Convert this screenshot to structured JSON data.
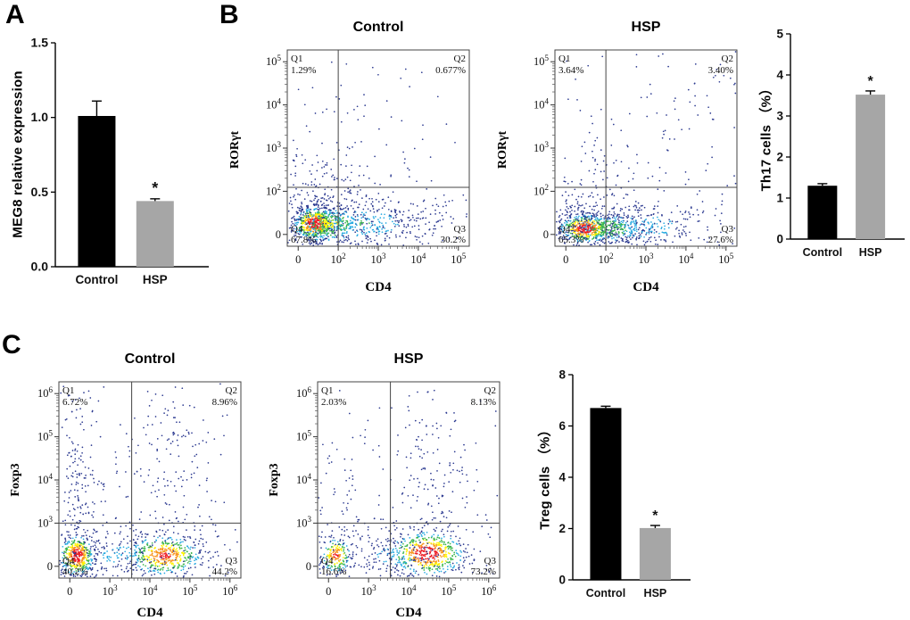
{
  "figure": {
    "background": "#ffffff",
    "panel_labels": {
      "a": "A",
      "b": "B",
      "c": "C"
    }
  },
  "colors": {
    "bar_control": "#000000",
    "bar_hsp": "#a6a6a6",
    "axis": "#000000",
    "density_ramp": [
      "#2b3990",
      "#27aae1",
      "#39b54a",
      "#fff200",
      "#f7941d",
      "#ed1c24"
    ]
  },
  "chart_data": [
    {
      "id": "meg8_bar",
      "type": "bar",
      "categories": [
        "Control",
        "HSP"
      ],
      "values": [
        1.01,
        0.44
      ],
      "errors": [
        0.1,
        0.015
      ],
      "significance": [
        "",
        "*"
      ],
      "bar_colors": [
        "#000000",
        "#a6a6a6"
      ],
      "ylabel": "MEG8 relative expression",
      "xlabel": "",
      "ylim": [
        0,
        1.5
      ],
      "yticks": [
        0,
        0.5,
        1,
        1.5
      ],
      "ytick_labels": [
        "0.0",
        "0.5",
        "1.0",
        "1.5"
      ],
      "legend": "none",
      "grid": false
    },
    {
      "id": "flow_b_control",
      "type": "scatter",
      "variant": "flow-cytometry-density",
      "title": "Control",
      "xlabel": "CD4",
      "ylabel": "RORγt",
      "xticks": [
        "0",
        "10^2",
        "10^3",
        "10^4",
        "10^5"
      ],
      "yticks": [
        "0",
        "10^2",
        "10^3",
        "10^4",
        "10^5"
      ],
      "gate": {
        "x": 0.28,
        "y": 0.3
      },
      "quadrants": [
        {
          "name": "Q1",
          "value": "1.29%",
          "corner": "tl"
        },
        {
          "name": "Q2",
          "value": "0.677%",
          "corner": "tr"
        },
        {
          "name": "Q3",
          "value": "30.2%",
          "corner": "br"
        },
        {
          "name": "Q4",
          "value": "67.8%",
          "corner": "bl"
        }
      ],
      "clusters": [
        {
          "cx": 0.15,
          "cy": 0.115,
          "sx": 0.055,
          "sy": 0.042,
          "n": 650,
          "heat": 1.0
        },
        {
          "cx": 0.24,
          "cy": 0.11,
          "sx": 0.09,
          "sy": 0.05,
          "n": 380,
          "heat": 0.5
        },
        {
          "cx": 0.42,
          "cy": 0.115,
          "sx": 0.16,
          "sy": 0.055,
          "n": 320,
          "heat": 0.28
        },
        {
          "cx": 0.68,
          "cy": 0.12,
          "sx": 0.12,
          "sy": 0.06,
          "n": 80,
          "heat": 0.12
        },
        {
          "cx": 0.17,
          "cy": 0.32,
          "sx": 0.1,
          "sy": 0.13,
          "n": 110,
          "heat": 0.12
        },
        {
          "cx": 0.45,
          "cy": 0.55,
          "sx": 0.28,
          "sy": 0.25,
          "n": 70,
          "heat": 0
        }
      ]
    },
    {
      "id": "flow_b_hsp",
      "type": "scatter",
      "variant": "flow-cytometry-density",
      "title": "HSP",
      "xlabel": "CD4",
      "ylabel": "RORγt",
      "xticks": [
        "0",
        "10^2",
        "10^3",
        "10^4",
        "10^5"
      ],
      "yticks": [
        "0",
        "10^2",
        "10^3",
        "10^4",
        "10^5"
      ],
      "gate": {
        "x": 0.28,
        "y": 0.3
      },
      "quadrants": [
        {
          "name": "Q1",
          "value": "3.64%",
          "corner": "tl"
        },
        {
          "name": "Q2",
          "value": "3.40%",
          "corner": "tr"
        },
        {
          "name": "Q3",
          "value": "27.6%",
          "corner": "br"
        },
        {
          "name": "Q4",
          "value": "65.3%",
          "corner": "bl"
        }
      ],
      "clusters": [
        {
          "cx": 0.17,
          "cy": 0.09,
          "sx": 0.07,
          "sy": 0.035,
          "n": 620,
          "heat": 1.0
        },
        {
          "cx": 0.3,
          "cy": 0.09,
          "sx": 0.1,
          "sy": 0.04,
          "n": 350,
          "heat": 0.45
        },
        {
          "cx": 0.5,
          "cy": 0.1,
          "sx": 0.15,
          "sy": 0.05,
          "n": 260,
          "heat": 0.25
        },
        {
          "cx": 0.2,
          "cy": 0.28,
          "sx": 0.12,
          "sy": 0.13,
          "n": 110,
          "heat": 0.1
        },
        {
          "cx": 0.55,
          "cy": 0.5,
          "sx": 0.28,
          "sy": 0.25,
          "n": 90,
          "heat": 0
        },
        {
          "cx": 0.8,
          "cy": 0.8,
          "sx": 0.13,
          "sy": 0.12,
          "n": 30,
          "heat": 0
        }
      ]
    },
    {
      "id": "th17_bar",
      "type": "bar",
      "categories": [
        "Control",
        "HSP"
      ],
      "values": [
        1.3,
        3.52
      ],
      "errors": [
        0.05,
        0.09
      ],
      "significance": [
        "",
        "*"
      ],
      "bar_colors": [
        "#000000",
        "#a6a6a6"
      ],
      "ylabel": "Th17 cells （%）",
      "xlabel": "",
      "ylim": [
        0,
        5
      ],
      "yticks": [
        0,
        1,
        2,
        3,
        4,
        5
      ],
      "ytick_labels": [
        "0",
        "1",
        "2",
        "3",
        "4",
        "5"
      ],
      "legend": "none",
      "grid": false
    },
    {
      "id": "flow_c_control",
      "type": "scatter",
      "variant": "flow-cytometry-density",
      "title": "Control",
      "xlabel": "CD4",
      "ylabel": "Foxp3",
      "xticks": [
        "0",
        "10^3",
        "10^4",
        "10^5",
        "10^6"
      ],
      "yticks": [
        "0",
        "10^3",
        "10^4",
        "10^5",
        "10^6"
      ],
      "gate": {
        "x": 0.4,
        "y": 0.28
      },
      "quadrants": [
        {
          "name": "Q1",
          "value": "6.72%",
          "corner": "tl"
        },
        {
          "name": "Q2",
          "value": "8.96%",
          "corner": "tr"
        },
        {
          "name": "Q3",
          "value": "44.2%",
          "corner": "br"
        },
        {
          "name": "Q4",
          "value": "40.2%",
          "corner": "bl"
        }
      ],
      "clusters": [
        {
          "cx": 0.1,
          "cy": 0.115,
          "sx": 0.045,
          "sy": 0.05,
          "n": 520,
          "heat": 1.0
        },
        {
          "cx": 0.58,
          "cy": 0.115,
          "sx": 0.1,
          "sy": 0.05,
          "n": 560,
          "heat": 0.85
        },
        {
          "cx": 0.33,
          "cy": 0.12,
          "sx": 0.13,
          "sy": 0.05,
          "n": 150,
          "heat": 0.2
        },
        {
          "cx": 0.11,
          "cy": 0.5,
          "sx": 0.06,
          "sy": 0.28,
          "n": 200,
          "heat": 0.12
        },
        {
          "cx": 0.6,
          "cy": 0.55,
          "sx": 0.12,
          "sy": 0.28,
          "n": 190,
          "heat": 0.1
        },
        {
          "cx": 0.35,
          "cy": 0.45,
          "sx": 0.25,
          "sy": 0.3,
          "n": 80,
          "heat": 0
        }
      ]
    },
    {
      "id": "flow_c_hsp",
      "type": "scatter",
      "variant": "flow-cytometry-density",
      "title": "HSP",
      "xlabel": "CD4",
      "ylabel": "Foxp3",
      "xticks": [
        "0",
        "10^3",
        "10^4",
        "10^5",
        "10^6"
      ],
      "yticks": [
        "0",
        "10^3",
        "10^4",
        "10^5",
        "10^6"
      ],
      "gate": {
        "x": 0.4,
        "y": 0.28
      },
      "quadrants": [
        {
          "name": "Q1",
          "value": "2.03%",
          "corner": "tl"
        },
        {
          "name": "Q2",
          "value": "8.13%",
          "corner": "tr"
        },
        {
          "name": "Q3",
          "value": "73.2%",
          "corner": "br"
        },
        {
          "name": "Q4",
          "value": "16.6%",
          "corner": "bl"
        }
      ],
      "clusters": [
        {
          "cx": 0.1,
          "cy": 0.115,
          "sx": 0.04,
          "sy": 0.045,
          "n": 240,
          "heat": 0.85
        },
        {
          "cx": 0.6,
          "cy": 0.125,
          "sx": 0.1,
          "sy": 0.055,
          "n": 680,
          "heat": 1.0
        },
        {
          "cx": 0.42,
          "cy": 0.11,
          "sx": 0.12,
          "sy": 0.05,
          "n": 120,
          "heat": 0.2
        },
        {
          "cx": 0.63,
          "cy": 0.5,
          "sx": 0.11,
          "sy": 0.25,
          "n": 170,
          "heat": 0.12
        },
        {
          "cx": 0.13,
          "cy": 0.4,
          "sx": 0.07,
          "sy": 0.2,
          "n": 50,
          "heat": 0
        },
        {
          "cx": 0.38,
          "cy": 0.6,
          "sx": 0.25,
          "sy": 0.25,
          "n": 60,
          "heat": 0
        }
      ]
    },
    {
      "id": "treg_bar",
      "type": "bar",
      "categories": [
        "Control",
        "HSP"
      ],
      "values": [
        6.7,
        2.02
      ],
      "errors": [
        0.07,
        0.1
      ],
      "significance": [
        "",
        "*"
      ],
      "bar_colors": [
        "#000000",
        "#a6a6a6"
      ],
      "ylabel": "Treg cells （%）",
      "xlabel": "",
      "ylim": [
        0,
        8
      ],
      "yticks": [
        0,
        2,
        4,
        6,
        8
      ],
      "ytick_labels": [
        "0",
        "2",
        "4",
        "6",
        "8"
      ],
      "legend": "none",
      "grid": false
    }
  ]
}
